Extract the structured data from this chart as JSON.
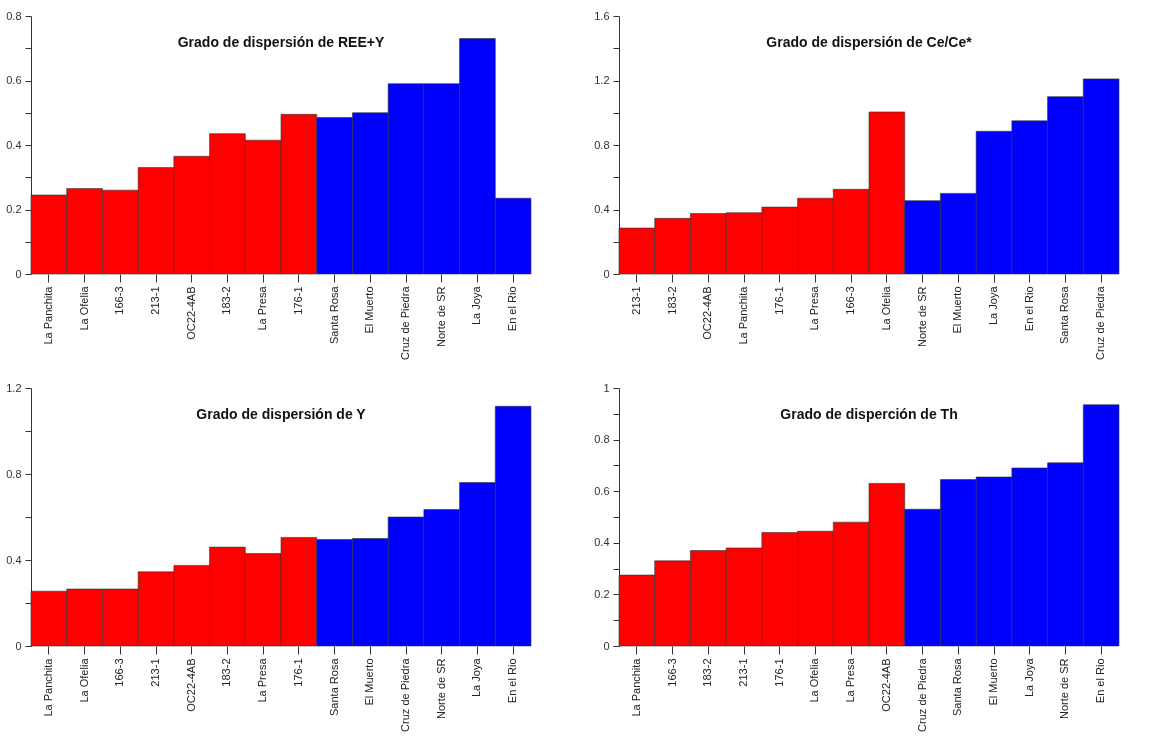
{
  "chart_data": [
    {
      "type": "bar",
      "title": "Grado de dispersión de REE+Y",
      "categories": [
        "La Panchita",
        "La Ofelia",
        "166-3",
        "213-1",
        "OC22-4AB",
        "183-2",
        "La Presa",
        "176-1",
        "Santa Rosa",
        "El Muerto",
        "Cruz de Piedra",
        "Norte de SR",
        "La Joya",
        "En el Rio"
      ],
      "values": [
        0.245,
        0.265,
        0.26,
        0.33,
        0.365,
        0.435,
        0.415,
        0.495,
        0.485,
        0.5,
        0.59,
        0.59,
        0.73,
        0.235
      ],
      "colors": [
        "#ff0000",
        "#ff0000",
        "#ff0000",
        "#ff0000",
        "#ff0000",
        "#ff0000",
        "#ff0000",
        "#ff0000",
        "#0000ff",
        "#0000ff",
        "#0000ff",
        "#0000ff",
        "#0000ff",
        "#0000ff"
      ],
      "ylim": [
        0,
        0.8
      ],
      "yticks": [
        0,
        {
          "value": 0.1,
          "label": null
        },
        0.2,
        {
          "value": 0.3,
          "label": null
        },
        0.4,
        {
          "value": 0.5,
          "label": null
        },
        0.6,
        {
          "value": 0.7,
          "label": null
        },
        0.8
      ],
      "grid": false
    },
    {
      "type": "bar",
      "title": "Grado de dispersión de Ce/Ce*",
      "categories": [
        "213-1",
        "183-2",
        "OC22-4AB",
        "La Panchita",
        "176-1",
        "La Presa",
        "166-3",
        "La Ofelia",
        "Norte de SR",
        "El Muerto",
        "La Joya",
        "En el Rio",
        "Santa Rosa",
        "Cruz de Piedra"
      ],
      "values": [
        0.285,
        0.345,
        0.375,
        0.38,
        0.415,
        0.47,
        0.525,
        1.005,
        0.455,
        0.5,
        0.885,
        0.95,
        1.1,
        1.21
      ],
      "colors": [
        "#ff0000",
        "#ff0000",
        "#ff0000",
        "#ff0000",
        "#ff0000",
        "#ff0000",
        "#ff0000",
        "#ff0000",
        "#0000ff",
        "#0000ff",
        "#0000ff",
        "#0000ff",
        "#0000ff",
        "#0000ff"
      ],
      "ylim": [
        0,
        1.6
      ],
      "yticks": [
        0,
        {
          "value": 0.2,
          "label": null
        },
        0.4,
        {
          "value": 0.6,
          "label": null
        },
        0.8,
        {
          "value": 1,
          "label": null
        },
        1.2,
        {
          "value": 1.4,
          "label": null
        },
        1.6
      ],
      "grid": false
    },
    {
      "type": "bar",
      "title": "Grado de dispersión de Y",
      "categories": [
        "La Panchita",
        "La Ofelia",
        "166-3",
        "213-1",
        "OC22-4AB",
        "183-2",
        "La Presa",
        "176-1",
        "Santa Rosa",
        "El Muerto",
        "Cruz de Piedra",
        "Norte de SR",
        "La Joya",
        "En el Rio"
      ],
      "values": [
        0.255,
        0.265,
        0.265,
        0.345,
        0.375,
        0.46,
        0.43,
        0.505,
        0.495,
        0.5,
        0.6,
        0.635,
        0.76,
        1.115
      ],
      "colors": [
        "#ff0000",
        "#ff0000",
        "#ff0000",
        "#ff0000",
        "#ff0000",
        "#ff0000",
        "#ff0000",
        "#ff0000",
        "#0000ff",
        "#0000ff",
        "#0000ff",
        "#0000ff",
        "#0000ff",
        "#0000ff"
      ],
      "ylim": [
        0,
        1.2
      ],
      "yticks": [
        0,
        {
          "value": 0.2,
          "label": null
        },
        0.4,
        {
          "value": 0.6,
          "label": null
        },
        0.8,
        {
          "value": 1,
          "label": null
        },
        1.2
      ],
      "grid": false
    },
    {
      "type": "bar",
      "title": "Grado de disperción de Th",
      "categories": [
        "La Panchita",
        "166-3",
        "183-2",
        "213-1",
        "176-1",
        "La Ofelia",
        "La Presa",
        "OC22-4AB",
        "Cruz de Piedra",
        "Santa Rosa",
        "El Muerto",
        "La Joya",
        "Norte de SR",
        "En el Rio"
      ],
      "values": [
        0.275,
        0.33,
        0.37,
        0.38,
        0.44,
        0.445,
        0.48,
        0.63,
        0.53,
        0.645,
        0.655,
        0.69,
        0.71,
        0.935
      ],
      "colors": [
        "#ff0000",
        "#ff0000",
        "#ff0000",
        "#ff0000",
        "#ff0000",
        "#ff0000",
        "#ff0000",
        "#ff0000",
        "#0000ff",
        "#0000ff",
        "#0000ff",
        "#0000ff",
        "#0000ff",
        "#0000ff"
      ],
      "ylim": [
        0,
        1
      ],
      "yticks": [
        0,
        {
          "value": 0.1,
          "label": null
        },
        0.2,
        {
          "value": 0.3,
          "label": null
        },
        0.4,
        {
          "value": 0.5,
          "label": null
        },
        0.6,
        {
          "value": 0.7,
          "label": null
        },
        0.8,
        {
          "value": 0.9,
          "label": null
        },
        1
      ],
      "grid": false
    }
  ]
}
